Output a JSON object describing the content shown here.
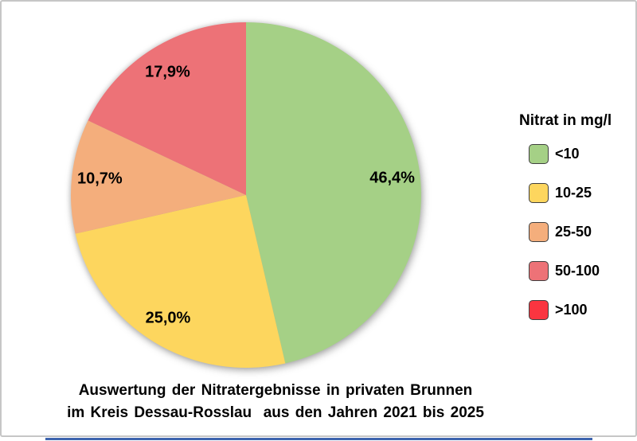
{
  "chart_data": {
    "type": "pie",
    "legend_title": "Nitrat in mg/l",
    "legend_position": "right",
    "start_angle_deg": 0,
    "direction": "clockwise",
    "slices": [
      {
        "category": "<10",
        "value_pct": 46.4,
        "label": "46,4%",
        "color": "#a5d086"
      },
      {
        "category": "10-25",
        "value_pct": 25.0,
        "label": "25,0%",
        "color": "#fdd65e"
      },
      {
        "category": "25-50",
        "value_pct": 10.7,
        "label": "10,7%",
        "color": "#f4ae7c"
      },
      {
        "category": "50-100",
        "value_pct": 17.9,
        "label": "17,9%",
        "color": "#ed7277"
      },
      {
        "category": ">100",
        "value_pct": 0.0,
        "label": "",
        "color": "#fa3540"
      }
    ],
    "title_lines": [
      "Auswertung der Nitratergebnisse in privaten Brunnen",
      "im Kreis Dessau-Rosslau  aus den Jahren 2021 bis 2025"
    ]
  },
  "frame": {
    "border_color": "#c6c6c6",
    "bottom_line_color": "#3d64ae"
  }
}
